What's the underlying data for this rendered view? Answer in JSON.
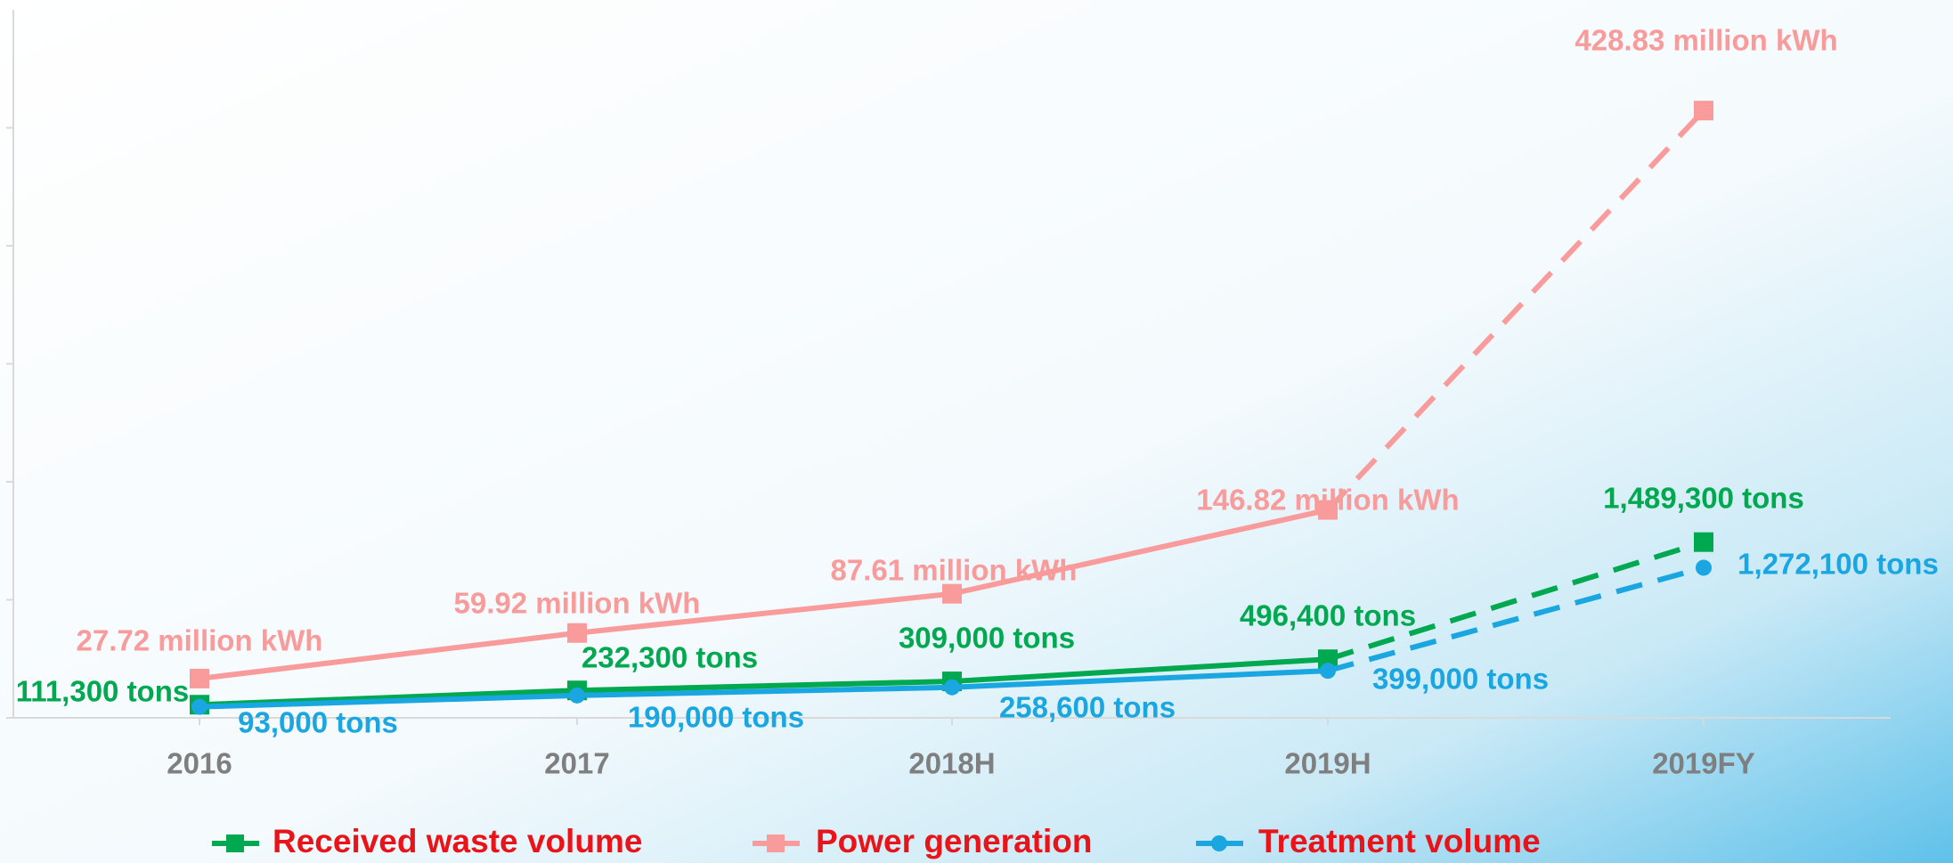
{
  "chart_data": {
    "type": "line",
    "categories": [
      "2016",
      "2017",
      "2018H",
      "2019H",
      "2019FY"
    ],
    "series": [
      {
        "name": "Received waste volume",
        "color": "#00a84f",
        "marker": "square",
        "axis": "y2",
        "values": [
          111300,
          232300,
          309000,
          496400,
          1489300
        ],
        "value_labels": [
          "111,300 tons",
          "232,300 tons",
          "309,000 tons",
          "496,400 tons",
          "1,489,300 tons"
        ]
      },
      {
        "name": "Power generation",
        "color": "#f99b9b",
        "marker": "square",
        "values": [
          27.72,
          59.92,
          87.61,
          146.82,
          428.83
        ],
        "value_labels": [
          "27.72 million kWh",
          "59.92 million kWh",
          "87.61 million kWh",
          "146.82 million kWh",
          "428.83 million kWh"
        ]
      },
      {
        "name": "Treatment volume",
        "color": "#1aa6e0",
        "marker": "circle",
        "axis": "y2",
        "values": [
          93000,
          190000,
          258600,
          399000,
          1272100
        ],
        "value_labels": [
          "93,000 tons",
          "190,000 tons",
          "258,600 tons",
          "399,000 tons",
          "1,272,100 tons"
        ]
      }
    ],
    "ylim": [
      0,
      500
    ],
    "y2lim": [
      0,
      6000000
    ],
    "y2ticks": [
      0,
      1000000,
      2000000,
      3000000,
      4000000,
      5000000
    ],
    "dashed_after": 3,
    "legend": "bottom",
    "grid": false
  }
}
